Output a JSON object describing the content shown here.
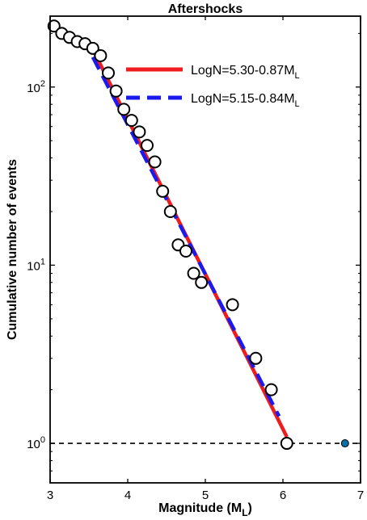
{
  "chart_data": {
    "type": "scatter",
    "title": "Aftershocks",
    "xlabel": "Magnitude (M",
    "xlabel_sub": "L",
    "xlabel_tail": ")",
    "ylabel": "Cumulative number of events",
    "xlim": [
      3,
      7
    ],
    "ylim": [
      0.6,
      250
    ],
    "yscale": "log",
    "grid": false,
    "legend_position": "top-right",
    "x_ticks": [
      3,
      4,
      5,
      6,
      7
    ],
    "x_tick_labels": [
      "3",
      "4",
      "5",
      "6",
      "7"
    ],
    "y_ticks": [
      1,
      10,
      100
    ],
    "y_tick_bases": [
      "10",
      "10",
      "10"
    ],
    "y_tick_exps": [
      "0",
      "1",
      "2"
    ],
    "points": {
      "x": [
        3.05,
        3.15,
        3.25,
        3.35,
        3.45,
        3.55,
        3.65,
        3.75,
        3.85,
        3.95,
        4.05,
        4.15,
        4.25,
        4.35,
        4.45,
        4.55,
        4.65,
        4.75,
        4.85,
        4.95,
        5.35,
        5.65,
        5.85,
        6.05
      ],
      "y": [
        220,
        200,
        190,
        180,
        175,
        165,
        150,
        120,
        95,
        75,
        65,
        56,
        47,
        38,
        26,
        20,
        13,
        12,
        9,
        8,
        6,
        3,
        2,
        1
      ]
    },
    "fits": [
      {
        "label": "LogN=5.30-0.87M",
        "label_sub": "L",
        "a": 5.3,
        "b": 0.87,
        "x_range": [
          3.55,
          6.05
        ],
        "color": "#ee1c1c",
        "style": "solid"
      },
      {
        "label": "LogN=5.15-0.84M",
        "label_sub": "L",
        "a": 5.15,
        "b": 0.84,
        "x_range": [
          3.55,
          5.95
        ],
        "color": "#1a1aee",
        "style": "dashed"
      }
    ],
    "reference_line": {
      "y": 1,
      "color": "#000000",
      "style": "dashed"
    },
    "mainshock_point": {
      "x": 6.8,
      "y": 1,
      "color": "#0b6fa4"
    }
  }
}
